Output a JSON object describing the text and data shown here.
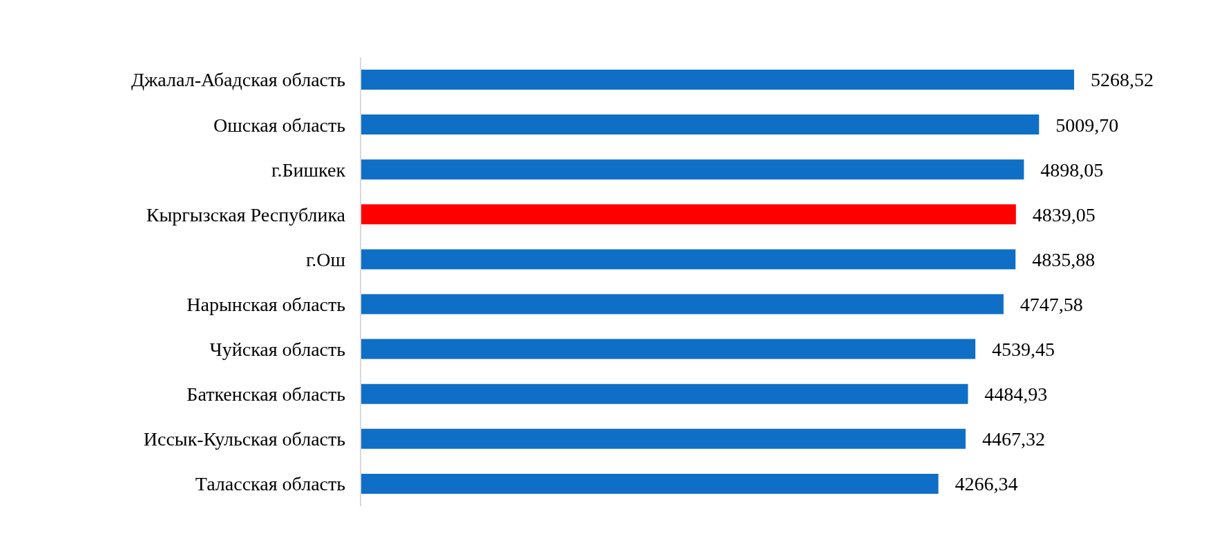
{
  "chart_data": {
    "type": "bar",
    "orientation": "horizontal",
    "categories": [
      "Джалал-Абадская область",
      "Ошская область",
      "г.Бишкек",
      "Кыргызская Республика",
      "г.Ош",
      "Нарынская область",
      "Чуйская область",
      "Баткенская область",
      "Иссык-Кульская область",
      "Таласская область"
    ],
    "values": [
      5268.52,
      5009.7,
      4898.05,
      4839.05,
      4835.88,
      4747.58,
      4539.45,
      4484.93,
      4467.32,
      4266.34
    ],
    "colors": [
      "#0f6fc6",
      "#0f6fc6",
      "#0f6fc6",
      "#ff0000",
      "#0f6fc6",
      "#0f6fc6",
      "#0f6fc6",
      "#0f6fc6",
      "#0f6fc6",
      "#0f6fc6"
    ],
    "value_labels": [
      "5268,52",
      "5009,70",
      "4898,05",
      "4839,05",
      "4835,88",
      "4747,58",
      "4539,45",
      "4484,93",
      "4467,32",
      "4266,34"
    ],
    "grid": false,
    "legend": false
  }
}
